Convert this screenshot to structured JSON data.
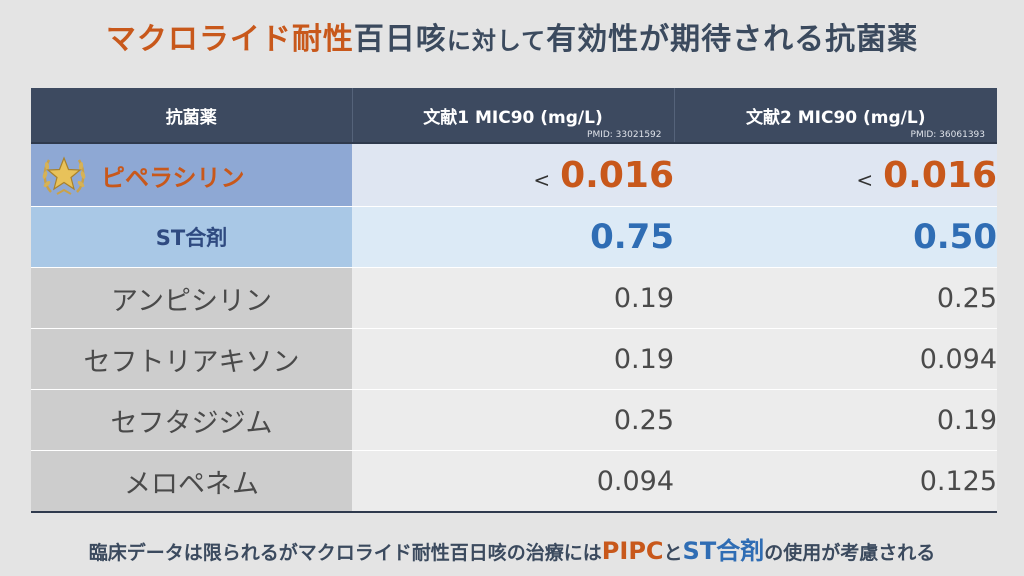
{
  "title": {
    "part1": "マクロライド耐性",
    "part2": "百日咳",
    "part3": "に対して",
    "part4": "有効性が期待される抗菌薬"
  },
  "table": {
    "headers": {
      "drug": "抗菌薬",
      "ref1": "文献1 MIC90 (mg/L)",
      "ref1_pmid": "PMID: 33021592",
      "ref2": "文献2 MIC90 (mg/L)",
      "ref2_pmid": "PMID: 36061393"
    },
    "rows": [
      {
        "name": "ピペラシリン",
        "prefix1": "<",
        "v1": "0.016",
        "prefix2": "<",
        "v2": "0.016"
      },
      {
        "name": "ST合剤",
        "v1": "0.75",
        "v2": "0.50"
      },
      {
        "name": "アンピシリン",
        "v1": "0.19",
        "v2": "0.25"
      },
      {
        "name": "セフトリアキソン",
        "v1": "0.19",
        "v2": "0.094"
      },
      {
        "name": "セフタジジム",
        "v1": "0.25",
        "v2": "0.19"
      },
      {
        "name": "メロペネム",
        "v1": "0.094",
        "v2": "0.125"
      }
    ]
  },
  "footer": {
    "part1": "臨床データは限られるがマクロライド耐性百日咳の治療には",
    "pipc": "PIPC",
    "and": "と",
    "st": "ST合剤",
    "part2": "の使用が考慮される"
  },
  "colors": {
    "accent_orange": "#c8581b",
    "accent_blue": "#2f6db4",
    "header_navy": "#3d4a60"
  },
  "icons": {
    "pipc_badge": "star-laurel-icon"
  }
}
